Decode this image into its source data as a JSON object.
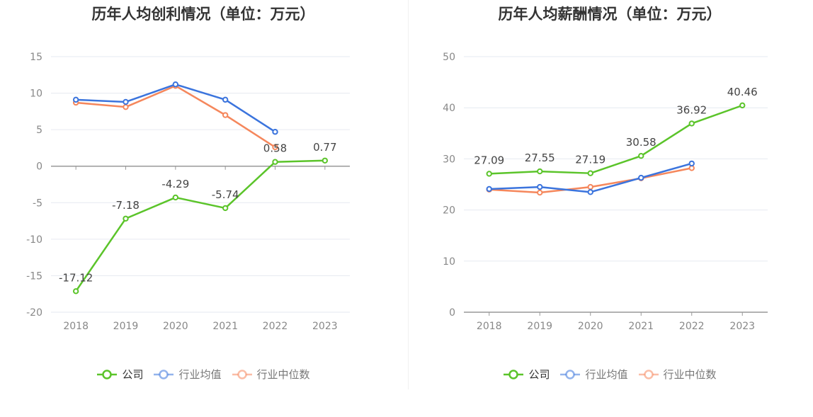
{
  "legend_labels": [
    "公司",
    "行业均值",
    "行业中位数"
  ],
  "colors": {
    "company": "#5bc42a",
    "avg": "#3b74dd",
    "median": "#f5875c",
    "grid": "#e6e9f0",
    "axis": "#999999",
    "tick_text": "#888888",
    "label_text": "#444444"
  },
  "chart_data": [
    {
      "type": "line",
      "title": "历年人均创利情况（单位：万元）",
      "categories": [
        "2018",
        "2019",
        "2020",
        "2021",
        "2022",
        "2023"
      ],
      "ylim": [
        -20,
        15
      ],
      "yticks": [
        15,
        10,
        5,
        0,
        -5,
        -10,
        -15,
        -20
      ],
      "grid": true,
      "legend_position": "bottom",
      "series": [
        {
          "name": "公司",
          "values": [
            -17.12,
            -7.18,
            -4.29,
            -5.74,
            0.58,
            0.77
          ],
          "labels": [
            "-17.12",
            "-7.18",
            "-4.29",
            "-5.74",
            "0.58",
            "0.77"
          ]
        },
        {
          "name": "行业均值",
          "values": [
            9.1,
            8.8,
            11.2,
            9.1,
            4.7,
            null
          ]
        },
        {
          "name": "行业中位数",
          "values": [
            8.7,
            8.1,
            11.0,
            7.0,
            2.6,
            null
          ]
        }
      ]
    },
    {
      "type": "line",
      "title": "历年人均薪酬情况（单位：万元）",
      "categories": [
        "2018",
        "2019",
        "2020",
        "2021",
        "2022",
        "2023"
      ],
      "ylim": [
        0,
        50
      ],
      "yticks": [
        50,
        40,
        30,
        20,
        10,
        0
      ],
      "grid": true,
      "legend_position": "bottom",
      "series": [
        {
          "name": "公司",
          "values": [
            27.09,
            27.55,
            27.19,
            30.58,
            36.92,
            40.46
          ],
          "labels": [
            "27.09",
            "27.55",
            "27.19",
            "30.58",
            "36.92",
            "40.46"
          ]
        },
        {
          "name": "行业均值",
          "values": [
            24.1,
            24.5,
            23.5,
            26.3,
            29.1,
            null
          ]
        },
        {
          "name": "行业中位数",
          "values": [
            24.0,
            23.4,
            24.5,
            26.2,
            28.2,
            null
          ]
        }
      ]
    }
  ]
}
